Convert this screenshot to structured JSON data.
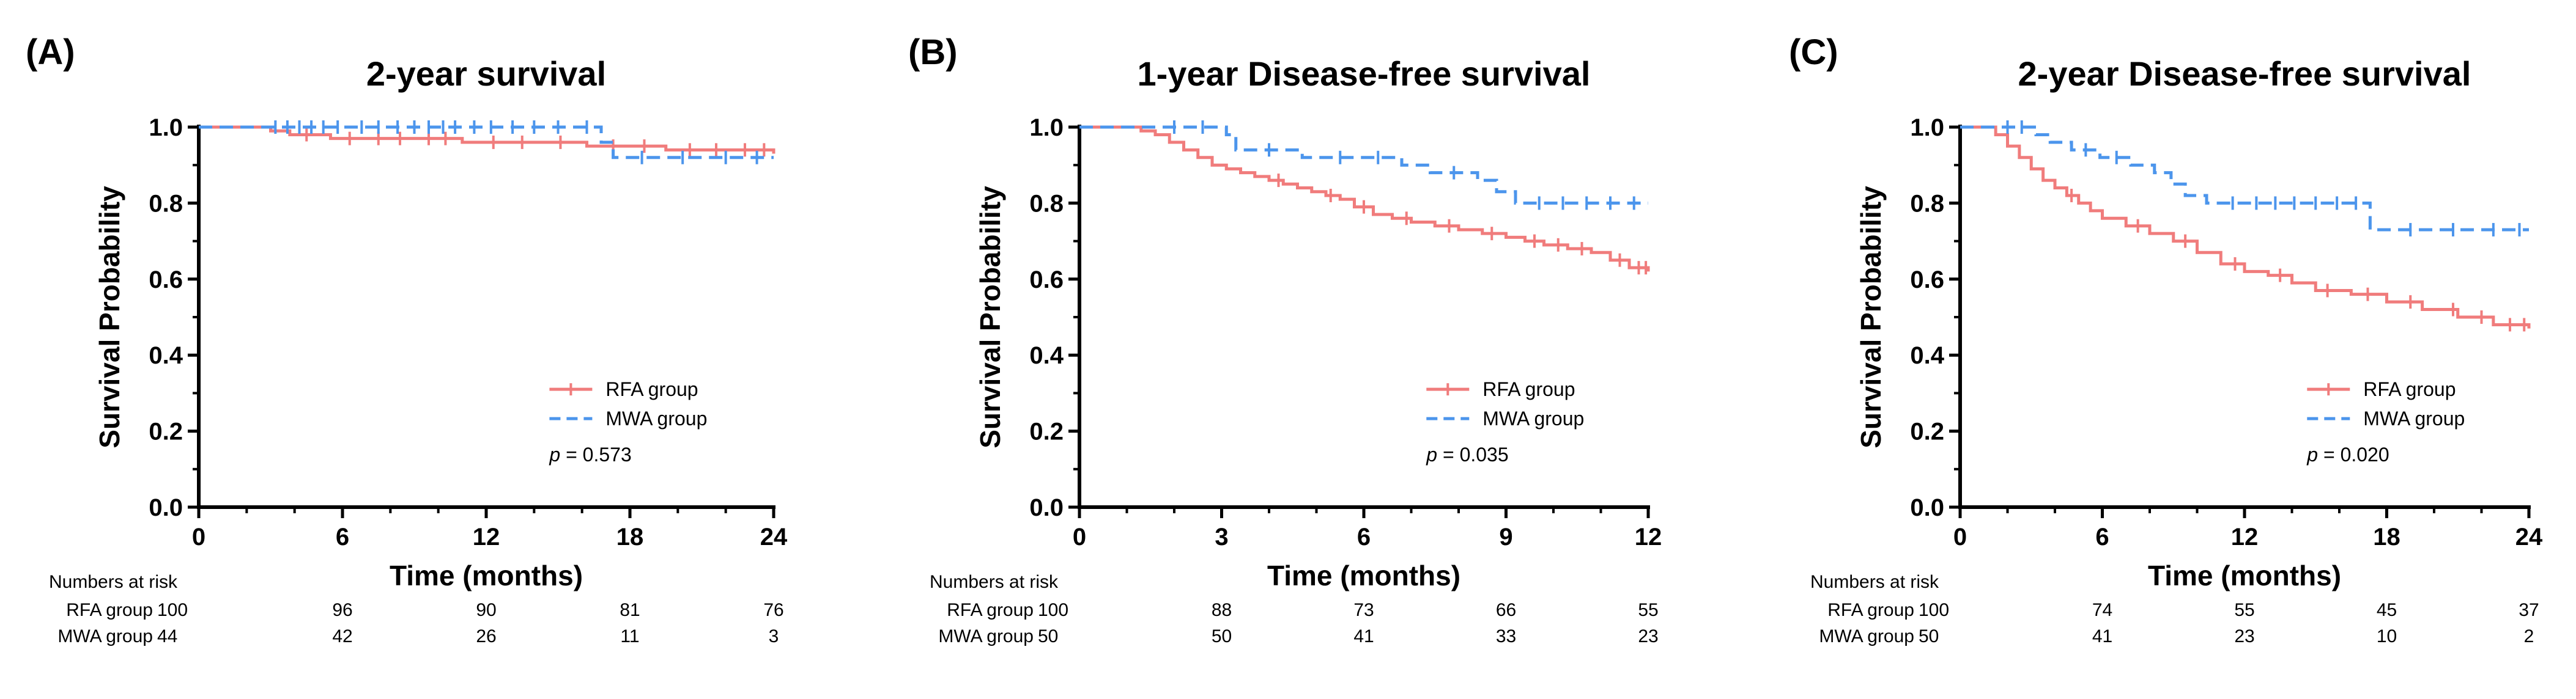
{
  "colors": {
    "rfa": "#f07c7c",
    "mwa": "#4c95ec",
    "axis": "#000000"
  },
  "chart_data": [
    {
      "type": "line",
      "panel_label": "(A)",
      "title": "2-year survival",
      "xlabel": "Time (months)",
      "ylabel": "Survival Probability",
      "xlim": [
        0,
        24
      ],
      "ylim": [
        0,
        1.0
      ],
      "xticks": [
        "0",
        "6",
        "12",
        "18",
        "24"
      ],
      "yticks": [
        "0.0",
        "0.2",
        "0.4",
        "0.6",
        "0.8",
        "1.0"
      ],
      "legend": {
        "position": "bottom-right",
        "entries": [
          "RFA group",
          "MWA group"
        ]
      },
      "p_prefix": "p",
      "p_value": " = 0.573",
      "series": [
        {
          "name": "RFA group",
          "style": "solid",
          "x": [
            0,
            3.0,
            3.8,
            5.5,
            11.0,
            16.2,
            19.5,
            24
          ],
          "y": [
            1.0,
            0.99,
            0.98,
            0.97,
            0.96,
            0.95,
            0.94,
            0.93
          ],
          "censor_x": [
            4.5,
            6.3,
            7.5,
            8.4,
            9.6,
            10.3,
            12.3,
            13.5,
            15.1,
            17.3,
            18.6,
            20.5,
            21.6,
            22.8,
            23.6
          ]
        },
        {
          "name": "MWA group",
          "style": "dashed",
          "x": [
            0,
            16.8,
            17.3,
            24
          ],
          "y": [
            1.0,
            0.96,
            0.92,
            0.92
          ],
          "censor_x": [
            3.2,
            3.7,
            4.2,
            4.7,
            5.2,
            5.8,
            6.8,
            7.5,
            8.3,
            9.0,
            9.6,
            10.2,
            10.7,
            11.5,
            12.2,
            13.1,
            14.0,
            15.0,
            16.2,
            18.5,
            20.2,
            22.0,
            23.3
          ]
        }
      ],
      "risk_table": {
        "heading": "Numbers at risk",
        "rows": [
          {
            "label": "RFA group",
            "values": [
              "100",
              "96",
              "90",
              "81",
              "76"
            ]
          },
          {
            "label": "MWA group",
            "values": [
              "44",
              "42",
              "26",
              "11",
              "3"
            ]
          }
        ]
      }
    },
    {
      "type": "line",
      "panel_label": "(B)",
      "title": "1-year Disease-free survival",
      "xlabel": "Time (months)",
      "ylabel": "Survival Probability",
      "xlim": [
        0,
        12
      ],
      "ylim": [
        0,
        1.0
      ],
      "xticks": [
        "0",
        "3",
        "6",
        "9",
        "12"
      ],
      "yticks": [
        "0.0",
        "0.2",
        "0.4",
        "0.6",
        "0.8",
        "1.0"
      ],
      "legend": {
        "position": "bottom-right",
        "entries": [
          "RFA group",
          "MWA group"
        ]
      },
      "p_prefix": "p",
      "p_value": " = 0.035",
      "series": [
        {
          "name": "RFA group",
          "style": "solid",
          "x": [
            0,
            1.3,
            1.6,
            1.9,
            2.2,
            2.5,
            2.8,
            3.1,
            3.4,
            3.7,
            4.0,
            4.3,
            4.6,
            4.9,
            5.2,
            5.5,
            5.8,
            6.2,
            6.6,
            7.0,
            7.5,
            8.0,
            8.5,
            9.0,
            9.4,
            9.8,
            10.3,
            10.8,
            11.2,
            11.6,
            12
          ],
          "y": [
            1.0,
            0.99,
            0.98,
            0.96,
            0.94,
            0.92,
            0.9,
            0.89,
            0.88,
            0.87,
            0.86,
            0.85,
            0.84,
            0.83,
            0.82,
            0.81,
            0.79,
            0.77,
            0.76,
            0.75,
            0.74,
            0.73,
            0.72,
            0.71,
            0.7,
            0.69,
            0.68,
            0.67,
            0.65,
            0.63,
            0.62
          ],
          "censor_x": [
            4.2,
            5.3,
            6.0,
            6.9,
            7.8,
            8.7,
            9.6,
            10.1,
            10.6,
            11.4,
            11.8,
            11.95
          ]
        },
        {
          "name": "MWA group",
          "style": "dashed",
          "x": [
            0,
            3.1,
            3.3,
            4.7,
            6.8,
            7.4,
            8.4,
            8.8,
            9.2,
            12
          ],
          "y": [
            1.0,
            0.98,
            0.94,
            0.92,
            0.9,
            0.88,
            0.86,
            0.83,
            0.8,
            0.8
          ],
          "censor_x": [
            2.0,
            2.6,
            4.0,
            5.5,
            6.3,
            7.9,
            9.7,
            10.2,
            10.7,
            11.2,
            11.7
          ]
        }
      ],
      "risk_table": {
        "heading": "Numbers at risk",
        "rows": [
          {
            "label": "RFA group",
            "values": [
              "100",
              "88",
              "73",
              "66",
              "55"
            ]
          },
          {
            "label": "MWA group",
            "values": [
              "50",
              "50",
              "41",
              "33",
              "23"
            ]
          }
        ]
      }
    },
    {
      "type": "line",
      "panel_label": "(C)",
      "title": "2-year Disease-free survival",
      "xlabel": "Time (months)",
      "ylabel": "Survival Probability",
      "xlim": [
        0,
        24
      ],
      "ylim": [
        0,
        1.0
      ],
      "xticks": [
        "0",
        "6",
        "12",
        "18",
        "24"
      ],
      "yticks": [
        "0.0",
        "0.2",
        "0.4",
        "0.6",
        "0.8",
        "1.0"
      ],
      "legend": {
        "position": "bottom-right",
        "entries": [
          "RFA group",
          "MWA group"
        ]
      },
      "p_prefix": "p",
      "p_value": " = 0.020",
      "series": [
        {
          "name": "RFA group",
          "style": "solid",
          "x": [
            0,
            1.5,
            2.0,
            2.5,
            3.0,
            3.5,
            4.0,
            4.5,
            5.0,
            5.5,
            6.0,
            7.0,
            8.0,
            9.0,
            10.0,
            11.0,
            12.0,
            13.0,
            14.0,
            15.0,
            16.5,
            18.0,
            19.5,
            21.0,
            22.5,
            24
          ],
          "y": [
            1.0,
            0.98,
            0.95,
            0.92,
            0.89,
            0.86,
            0.84,
            0.82,
            0.8,
            0.78,
            0.76,
            0.74,
            0.72,
            0.7,
            0.67,
            0.64,
            0.62,
            0.61,
            0.59,
            0.57,
            0.56,
            0.54,
            0.52,
            0.5,
            0.48,
            0.47
          ],
          "censor_x": [
            4.7,
            7.5,
            9.5,
            11.6,
            13.5,
            15.5,
            17.2,
            19.0,
            20.8,
            22.0,
            23.2,
            23.8
          ]
        },
        {
          "name": "MWA group",
          "style": "dashed",
          "x": [
            0,
            3.2,
            3.8,
            4.7,
            5.9,
            7.2,
            8.2,
            8.9,
            9.5,
            10.4,
            17.3,
            24
          ],
          "y": [
            1.0,
            0.98,
            0.96,
            0.94,
            0.92,
            0.9,
            0.88,
            0.85,
            0.82,
            0.8,
            0.73,
            0.73
          ],
          "censor_x": [
            2.0,
            2.6,
            5.3,
            6.6,
            11.5,
            12.5,
            13.3,
            14.1,
            15.0,
            15.9,
            16.7,
            19.0,
            20.8,
            22.5,
            23.6
          ]
        }
      ],
      "risk_table": {
        "heading": "Numbers at risk",
        "rows": [
          {
            "label": "RFA group",
            "values": [
              "100",
              "74",
              "55",
              "45",
              "37"
            ]
          },
          {
            "label": "MWA group",
            "values": [
              "50",
              "41",
              "23",
              "10",
              "2"
            ]
          }
        ]
      }
    }
  ]
}
